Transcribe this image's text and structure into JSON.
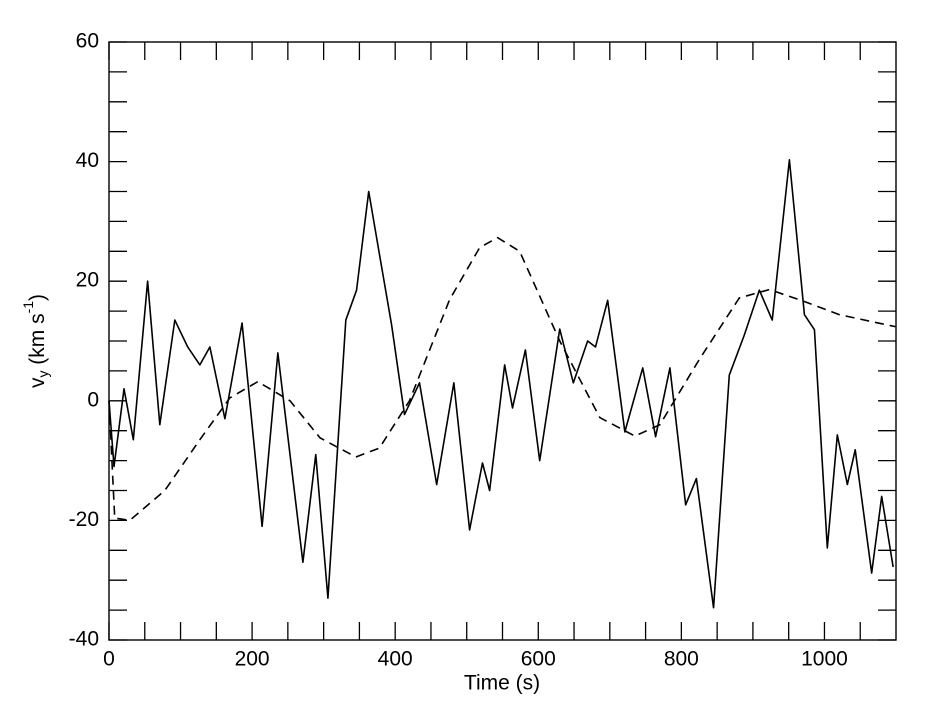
{
  "chart_data": {
    "type": "line",
    "xlabel": "Time (s)",
    "ylabel": {
      "base": "v",
      "sub": "y",
      "unit": " (km s",
      "sup": "-1",
      "close": ")"
    },
    "xlim": [
      0,
      1100
    ],
    "xticks": [
      0,
      200,
      400,
      600,
      800,
      1000
    ],
    "x_minor_ticks": [
      50,
      100,
      150,
      250,
      300,
      350,
      450,
      500,
      550,
      650,
      700,
      750,
      850,
      900,
      950,
      1050
    ],
    "ylim": [
      -40,
      60
    ],
    "yticks": [
      -40,
      -20,
      0,
      20,
      40,
      60
    ],
    "y_minor_ticks": [
      -35,
      -30,
      -25,
      -15,
      -10,
      -5,
      5,
      10,
      15,
      25,
      30,
      35,
      45,
      50,
      55
    ],
    "series": [
      {
        "color": "#000000",
        "dash": "solid",
        "x": [
          0,
          7,
          21,
          34,
          54,
          71,
          92,
          110,
          127,
          141,
          162,
          186,
          214,
          236,
          271,
          289,
          306,
          331,
          346,
          363,
          378,
          395,
          413,
          434,
          458,
          482,
          504,
          522,
          532,
          553,
          564,
          582,
          602,
          630,
          649,
          669,
          680,
          697,
          721,
          746,
          764,
          784,
          806,
          821,
          845,
          867,
          888,
          909,
          927,
          951,
          972,
          986,
          1004,
          1018,
          1032,
          1043,
          1066,
          1080,
          1096
        ],
        "values": [
          0,
          -11,
          2,
          -6.5,
          20,
          -4,
          13.5,
          9,
          6,
          9,
          -3,
          13,
          -21,
          8,
          -27,
          -9,
          -33,
          13.5,
          18.5,
          35,
          24.5,
          12.7,
          -2.3,
          3,
          -14,
          3,
          -21.6,
          -10.4,
          -15,
          6,
          -1.2,
          8.5,
          -10,
          12,
          3,
          10,
          9,
          16.8,
          -5.2,
          5.5,
          -6,
          5.5,
          -17.4,
          -13,
          -34.6,
          4.3,
          11,
          18.5,
          13.5,
          40.3,
          14.4,
          11.9,
          -24.6,
          -5.7,
          -14,
          -8.2,
          -28.8,
          -16,
          -27.8
        ]
      },
      {
        "color": "#000000",
        "dash": "dashed",
        "x": [
          0,
          8,
          29,
          78,
          127,
          169,
          208,
          253,
          295,
          345,
          378,
          420,
          476,
          518,
          543,
          574,
          630,
          686,
          735,
          770,
          825,
          881,
          923,
          965,
          1021,
          1099
        ],
        "values": [
          0,
          -19.6,
          -20,
          -15,
          -6.5,
          0.5,
          3.2,
          0,
          -6.2,
          -9.4,
          -7.9,
          0,
          16.9,
          25.6,
          27.3,
          25,
          10,
          -2.8,
          -5.9,
          -4,
          6.9,
          17.2,
          18.6,
          16.9,
          14.4,
          12.4
        ]
      }
    ]
  }
}
